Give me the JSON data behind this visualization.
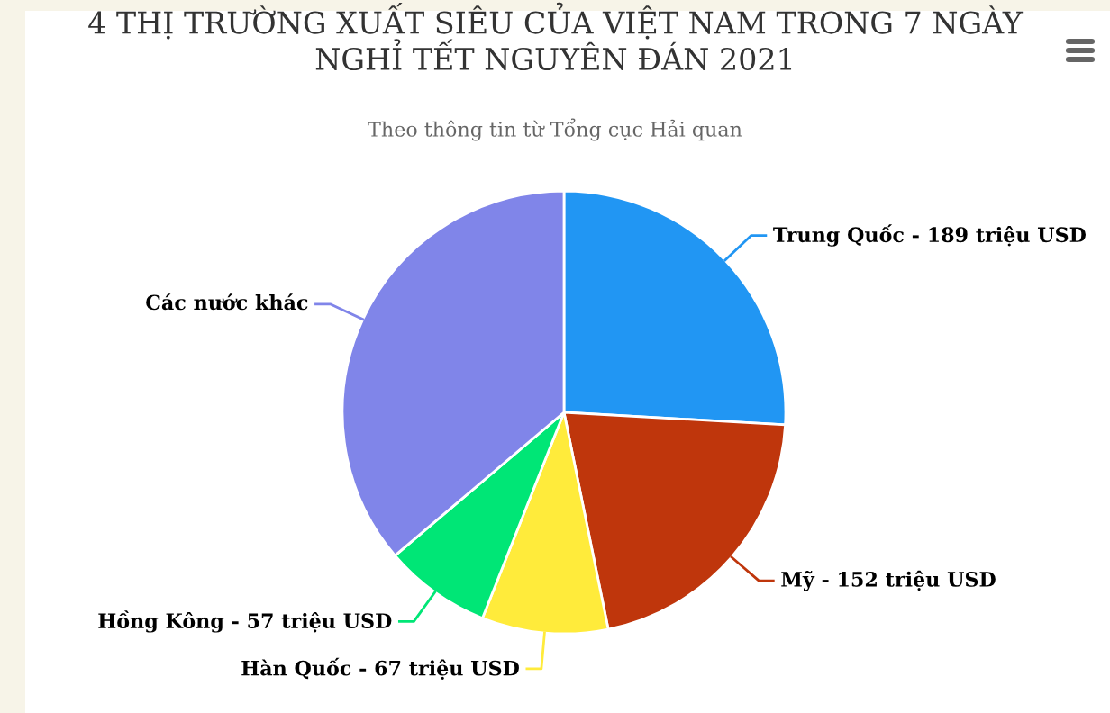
{
  "chart_data": {
    "type": "pie",
    "title": "4 THỊ TRƯỜNG XUẤT SIÊU CỦA VIỆT NAM TRONG 7 NGÀY\nNGHỈ TẾT NGUYÊN ĐÁN 2021",
    "subtitle": "Theo thông tin từ Tổng cục Hải quan",
    "categories": [
      "Trung Quốc - 189 triệu USD",
      "Mỹ - 152 triệu USD",
      "Hàn Quốc - 67 triệu USD",
      "Hồng Kông - 57 triệu USD",
      "Các nước khác"
    ],
    "values": [
      25.9,
      20.9,
      9.2,
      7.8,
      36.2
    ],
    "colors": [
      "#2196f3",
      "#bf360c",
      "#ffeb3b",
      "#00e676",
      "#8085e9"
    ],
    "legend": false
  }
}
